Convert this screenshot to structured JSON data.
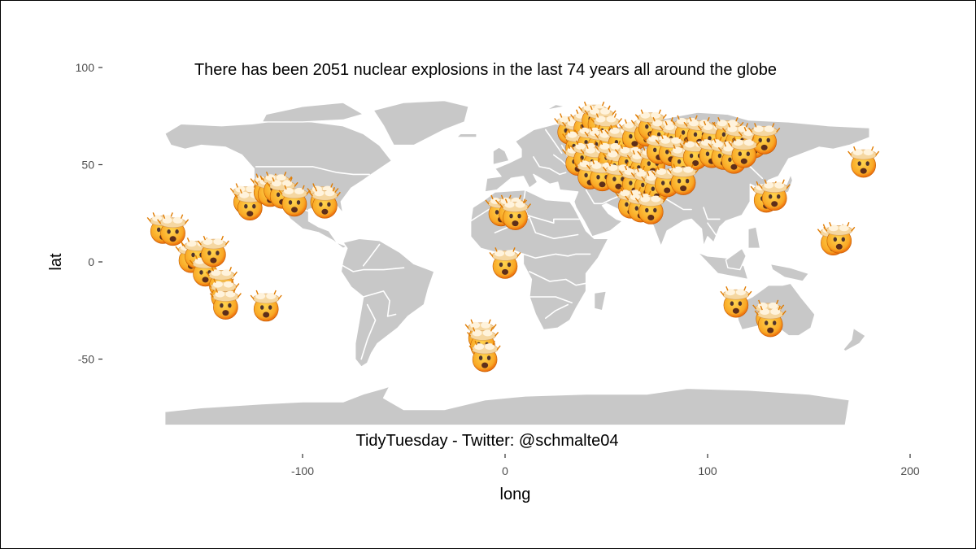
{
  "chart_data": {
    "type": "scatter",
    "title": "",
    "annotation_top": "There has been 2051 nuclear explosions in the last 74 years all around the globe",
    "annotation_bottom": "TidyTuesday - Twitter: @schmalte04",
    "xlabel": "long",
    "ylabel": "lat",
    "xlim": [
      -170,
      200
    ],
    "ylim": [
      -85,
      100
    ],
    "x_ticks": [
      -100,
      0,
      100,
      200
    ],
    "y_ticks": [
      100,
      50,
      0,
      -50
    ],
    "grid": false,
    "marker": "exploding-head-emoji",
    "background_map": "world map (grey land, white borders)",
    "colors": {
      "land": "#c8c8c8",
      "borders": "#ffffff",
      "marker_face": "#f9a825",
      "tick_text": "#4d4d4d"
    },
    "points": [
      {
        "x": -169,
        "y": 17
      },
      {
        "x": -164,
        "y": 16
      },
      {
        "x": -155,
        "y": 2
      },
      {
        "x": -152,
        "y": 4
      },
      {
        "x": -148,
        "y": -5
      },
      {
        "x": -144,
        "y": 5
      },
      {
        "x": -140,
        "y": -11
      },
      {
        "x": -139,
        "y": -17
      },
      {
        "x": -138,
        "y": -22
      },
      {
        "x": -118,
        "y": -23
      },
      {
        "x": -128,
        "y": 32
      },
      {
        "x": -126,
        "y": 29
      },
      {
        "x": -118,
        "y": 37
      },
      {
        "x": -116,
        "y": 36
      },
      {
        "x": -113,
        "y": 38
      },
      {
        "x": -110,
        "y": 35
      },
      {
        "x": -104,
        "y": 31
      },
      {
        "x": -90,
        "y": 32
      },
      {
        "x": -89,
        "y": 30
      },
      {
        "x": -2,
        "y": 26
      },
      {
        "x": 3,
        "y": 26
      },
      {
        "x": 5,
        "y": 24
      },
      {
        "x": 0,
        "y": -1
      },
      {
        "x": -12,
        "y": -38
      },
      {
        "x": -11,
        "y": -42
      },
      {
        "x": -10,
        "y": -49
      },
      {
        "x": 32,
        "y": 68
      },
      {
        "x": 36,
        "y": 66
      },
      {
        "x": 40,
        "y": 70
      },
      {
        "x": 44,
        "y": 74
      },
      {
        "x": 47,
        "y": 72
      },
      {
        "x": 50,
        "y": 68
      },
      {
        "x": 36,
        "y": 60
      },
      {
        "x": 42,
        "y": 62
      },
      {
        "x": 47,
        "y": 61
      },
      {
        "x": 52,
        "y": 60
      },
      {
        "x": 57,
        "y": 62
      },
      {
        "x": 64,
        "y": 65
      },
      {
        "x": 70,
        "y": 67
      },
      {
        "x": 72,
        "y": 70
      },
      {
        "x": 78,
        "y": 66
      },
      {
        "x": 84,
        "y": 64
      },
      {
        "x": 90,
        "y": 67
      },
      {
        "x": 96,
        "y": 66
      },
      {
        "x": 103,
        "y": 64
      },
      {
        "x": 110,
        "y": 66
      },
      {
        "x": 115,
        "y": 63
      },
      {
        "x": 123,
        "y": 61
      },
      {
        "x": 128,
        "y": 63
      },
      {
        "x": 36,
        "y": 52
      },
      {
        "x": 40,
        "y": 54
      },
      {
        "x": 45,
        "y": 52
      },
      {
        "x": 52,
        "y": 54
      },
      {
        "x": 56,
        "y": 50
      },
      {
        "x": 62,
        "y": 52
      },
      {
        "x": 68,
        "y": 49
      },
      {
        "x": 73,
        "y": 51
      },
      {
        "x": 76,
        "y": 58
      },
      {
        "x": 82,
        "y": 57
      },
      {
        "x": 88,
        "y": 52
      },
      {
        "x": 94,
        "y": 55
      },
      {
        "x": 102,
        "y": 56
      },
      {
        "x": 108,
        "y": 55
      },
      {
        "x": 113,
        "y": 53
      },
      {
        "x": 118,
        "y": 56
      },
      {
        "x": 42,
        "y": 45
      },
      {
        "x": 48,
        "y": 44
      },
      {
        "x": 56,
        "y": 43
      },
      {
        "x": 64,
        "y": 41
      },
      {
        "x": 70,
        "y": 40
      },
      {
        "x": 75,
        "y": 38
      },
      {
        "x": 80,
        "y": 41
      },
      {
        "x": 88,
        "y": 42
      },
      {
        "x": 62,
        "y": 30
      },
      {
        "x": 67,
        "y": 28
      },
      {
        "x": 72,
        "y": 27
      },
      {
        "x": 129,
        "y": 33
      },
      {
        "x": 133,
        "y": 34
      },
      {
        "x": 177,
        "y": 51
      },
      {
        "x": 162,
        "y": 11
      },
      {
        "x": 165,
        "y": 12
      },
      {
        "x": 114,
        "y": -21
      },
      {
        "x": 130,
        "y": -28
      },
      {
        "x": 131,
        "y": -31
      }
    ]
  }
}
